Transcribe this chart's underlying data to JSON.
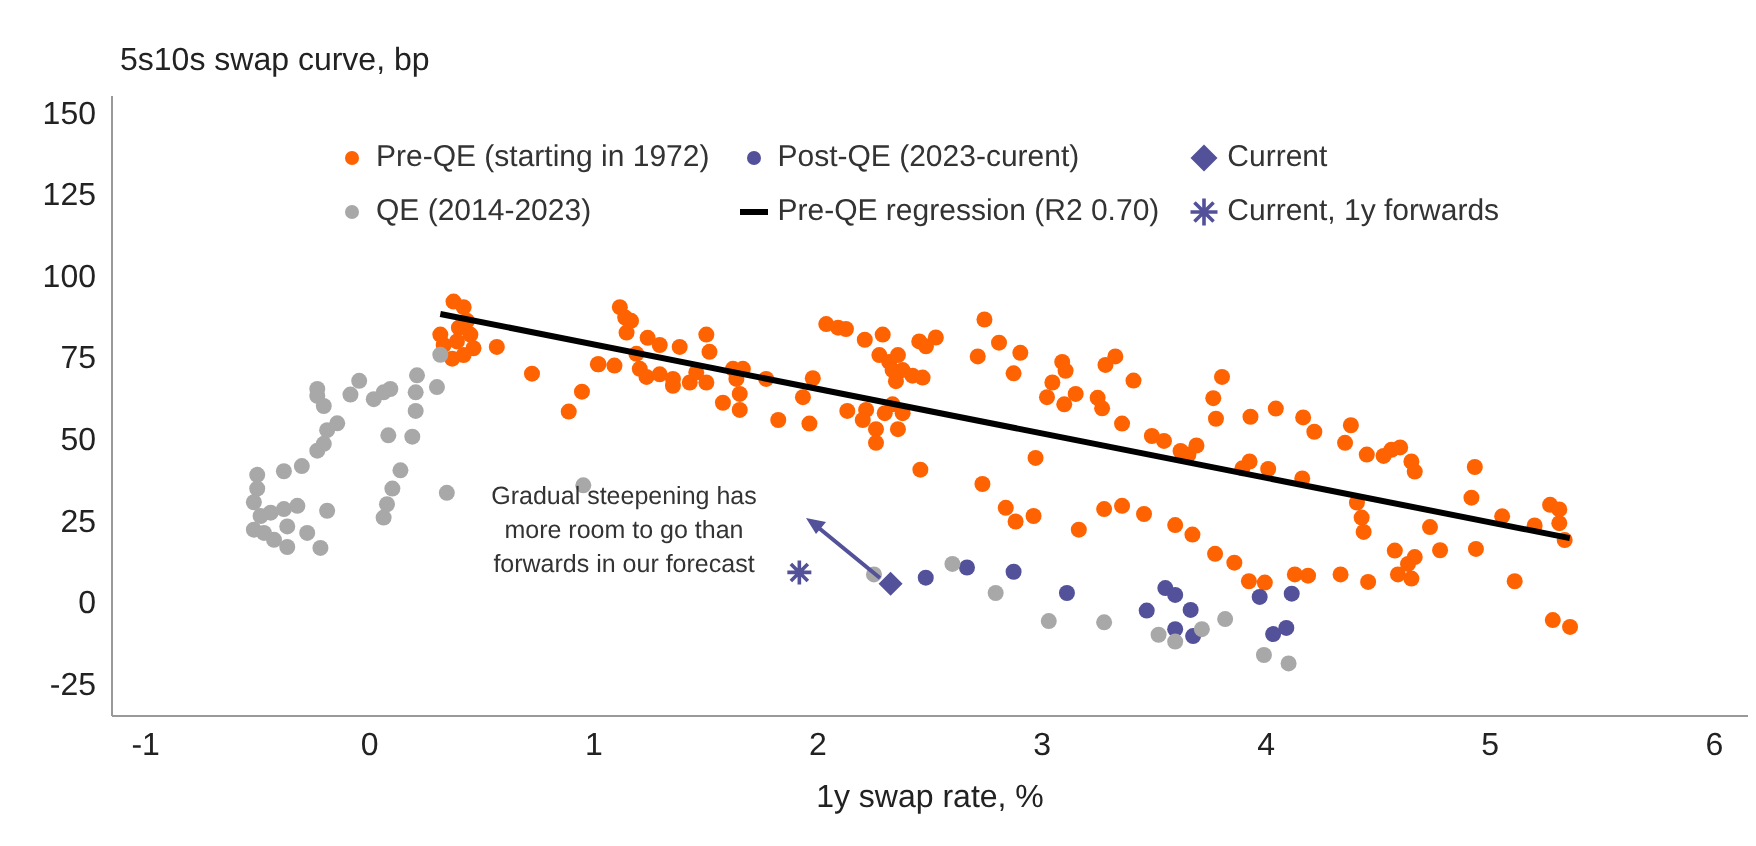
{
  "chart_data": {
    "type": "scatter",
    "ylabel": "5s10s swap curve, bp",
    "xlabel": "1y swap rate, %",
    "xlim": [
      -1.15,
      6.15
    ],
    "xticks": [
      -1,
      0,
      1,
      2,
      3,
      4,
      5,
      6
    ],
    "ylim": [
      -35,
      155
    ],
    "yticks": [
      -25,
      0,
      25,
      50,
      75,
      100,
      125,
      150
    ],
    "grid": false,
    "legend": "top",
    "marker": "circle",
    "annotations": [
      "Gradual steepening has more room to go than forwards in our forecast"
    ],
    "series": [
      {
        "name": "Pre-QE (starting in 1972)",
        "color": "#ff6200",
        "x": [
          0.374,
          0.419,
          0.398,
          0.315,
          0.33,
          0.389,
          0.449,
          0.463,
          0.419,
          0.368,
          0.434,
          0.567,
          0.724,
          0.947,
          0.888,
          1.018,
          1.092,
          1.116,
          1.14,
          1.166,
          1.146,
          1.24,
          1.294,
          1.383,
          1.502,
          1.516,
          1.19,
          1.021,
          1.205,
          1.235,
          1.294,
          1.353,
          1.353,
          1.428,
          1.457,
          1.502,
          1.621,
          1.665,
          1.636,
          1.769,
          1.651,
          1.576,
          1.651,
          1.823,
          1.933,
          1.962,
          1.977,
          2.037,
          2.09,
          2.125,
          2.209,
          2.289,
          2.274,
          2.318,
          2.357,
          2.333,
          2.378,
          2.422,
          2.467,
          2.348,
          2.452,
          2.482,
          2.526,
          2.131,
          2.215,
          2.2,
          2.298,
          2.333,
          2.378,
          2.259,
          2.259,
          2.357,
          2.457,
          2.743,
          2.808,
          2.903,
          2.713,
          2.873,
          2.971,
          2.734,
          2.838,
          2.882,
          2.962,
          3.046,
          3.09,
          3.105,
          3.022,
          3.099,
          3.15,
          3.248,
          3.283,
          3.327,
          3.268,
          3.357,
          3.277,
          3.357,
          3.164,
          3.408,
          3.803,
          3.764,
          3.776,
          3.93,
          4.043,
          4.165,
          4.215,
          4.352,
          4.378,
          4.449,
          4.524,
          4.559,
          4.598,
          4.648,
          4.663,
          4.931,
          4.916,
          5.053,
          5.198,
          5.267,
          5.308,
          5.308,
          5.332,
          5.279,
          5.356,
          5.109,
          3.49,
          3.544,
          3.618,
          3.653,
          3.689,
          3.894,
          3.926,
          4.009,
          4.161,
          3.455,
          3.594,
          3.671,
          3.772,
          3.858,
          3.923,
          3.994,
          4.128,
          4.187,
          4.332,
          4.455,
          4.405,
          4.426,
          4.435,
          4.574,
          4.588,
          4.633,
          4.663,
          4.648,
          4.731,
          4.776,
          4.936
        ],
        "values": [
          92,
          90.3,
          84,
          81.9,
          78.7,
          79.8,
          81.9,
          77.7,
          75.6,
          74.5,
          86.1,
          78.1,
          69.9,
          64.4,
          58.3,
          72.8,
          72.4,
          90.3,
          87.1,
          86.1,
          82.5,
          80.9,
          78.7,
          78.1,
          81.9,
          76.6,
          76,
          72.8,
          71.4,
          68.9,
          69.7,
          68.3,
          66.2,
          67.2,
          70.3,
          67.2,
          71.4,
          71.4,
          68.3,
          68.3,
          63.7,
          61,
          58.8,
          55.7,
          62.7,
          54.6,
          68.5,
          85.1,
          84,
          83.6,
          80.3,
          81.9,
          75.6,
          73.5,
          75.6,
          71,
          71,
          69.3,
          68.7,
          67.6,
          79.8,
          78.3,
          81,
          58.5,
          58.8,
          55.7,
          57.8,
          60.5,
          57.8,
          52.9,
          48.7,
          52.9,
          40.5,
          86.5,
          79.4,
          76.3,
          75.2,
          70,
          44.1,
          36.1,
          28.8,
          24.6,
          26.3,
          67.2,
          73.5,
          70.8,
          62.7,
          60.5,
          63.7,
          62.5,
          72.6,
          75.2,
          59.3,
          54.6,
          28.4,
          29.4,
          22.1,
          67.8,
          68.9,
          62.4,
          56.1,
          56.7,
          59.2,
          56.5,
          52.1,
          48.7,
          54.1,
          45.1,
          44.7,
          46.6,
          47.3,
          43,
          39.9,
          41.3,
          31.9,
          26.2,
          23.4,
          29.7,
          28.3,
          24.1,
          18.9,
          -5.6,
          -7.7,
          6.3,
          50.8,
          49.3,
          46.2,
          45.1,
          47.9,
          40.9,
          43,
          40.7,
          37.8,
          26.9,
          23.5,
          20.6,
          14.7,
          12,
          6.3,
          5.9,
          8.4,
          8,
          8.4,
          6.1,
          30.4,
          25.8,
          21.4,
          15.7,
          8.4,
          11.6,
          13.7,
          7.1,
          22.9,
          15.8,
          16.2
        ]
      },
      {
        "name": "Post-QE (2023-curent)",
        "color": "#525199",
        "x": [
          2.481,
          2.665,
          2.873,
          3.111,
          3.467,
          3.55,
          3.594,
          3.663,
          3.594,
          3.674,
          3.971,
          4.114,
          4.031,
          4.09
        ],
        "values": [
          7.4,
          10.5,
          9.2,
          2.7,
          -2.7,
          4.2,
          2.1,
          -2.5,
          -8.4,
          -10.5,
          1.5,
          2.5,
          -9.9,
          -8
        ]
      },
      {
        "name": "Current",
        "color": "#525199",
        "marker": "diamond",
        "x": [
          2.324
        ],
        "values": [
          5.5
        ]
      },
      {
        "name": "QE (2014-2023)",
        "color": "#a8a8a8",
        "x": [
          -0.502,
          -0.502,
          -0.517,
          -0.487,
          -0.517,
          -0.472,
          -0.427,
          -0.368,
          -0.368,
          -0.442,
          -0.383,
          -0.323,
          -0.383,
          -0.303,
          -0.279,
          -0.22,
          -0.19,
          -0.234,
          -0.205,
          -0.19,
          -0.145,
          -0.234,
          -0.205,
          -0.234,
          -0.086,
          -0.047,
          0.018,
          0.062,
          0.092,
          0.083,
          0.19,
          0.205,
          0.205,
          0.211,
          0.3,
          0.315,
          0.137,
          0.101,
          0.077,
          0.062,
          0.344,
          0.953,
          2.25,
          2.6,
          2.793,
          3.03,
          3.277,
          3.52,
          3.594,
          3.713,
          3.817,
          3.99,
          4.1
        ],
        "values": [
          38.9,
          34.7,
          30.5,
          26.3,
          22.1,
          21.1,
          19,
          16.8,
          23.1,
          27.3,
          28.4,
          29.4,
          40,
          41.6,
          21.1,
          16.5,
          27.9,
          46.3,
          48.4,
          52.6,
          54.7,
          65.2,
          60,
          63.1,
          63.5,
          67.7,
          62.1,
          64.2,
          65.2,
          51,
          50.6,
          58.5,
          64.2,
          69.4,
          65.8,
          75.7,
          40.3,
          34.7,
          29.9,
          25.8,
          33.4,
          35.7,
          8.4,
          11.6,
          2.7,
          -5.9,
          -6.3,
          -10.1,
          -12.2,
          -8.4,
          -5.3,
          -16.3,
          -18.9
        ]
      },
      {
        "name": "Pre-QE regression (R2 0.70)",
        "type": "line",
        "color": "#000000",
        "marker": "none",
        "x": [
          0.315,
          5.355
        ],
        "values": [
          88.2,
          19.5
        ]
      },
      {
        "name": "Current, 1y forwards",
        "color": "#525199",
        "marker": "cross",
        "x": [
          1.917
        ],
        "values": [
          9
        ]
      }
    ]
  }
}
